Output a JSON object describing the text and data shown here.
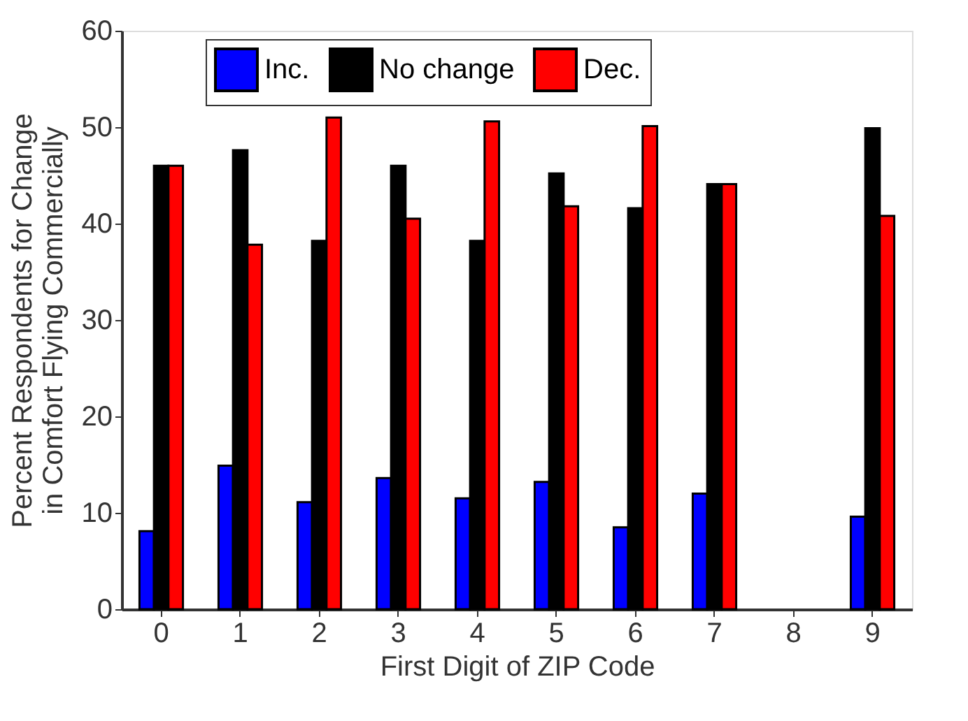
{
  "chart_data": {
    "type": "bar",
    "xlabel": "First Digit of ZIP Code",
    "ylabel": "Percent Respondents for Change\nin Comfort Flying Commercially",
    "categories": [
      "0",
      "1",
      "2",
      "3",
      "4",
      "5",
      "6",
      "7",
      "8",
      "9"
    ],
    "series": [
      {
        "name": "Inc.",
        "color": "#0000ff",
        "values": [
          8.1,
          14.9,
          11.1,
          13.6,
          11.5,
          13.2,
          8.5,
          12.0,
          null,
          9.6
        ]
      },
      {
        "name": "No change",
        "color": "#000000",
        "values": [
          46.0,
          47.6,
          38.2,
          46.0,
          38.2,
          45.2,
          41.6,
          44.1,
          null,
          49.9
        ]
      },
      {
        "name": "Dec.",
        "color": "#ff0000",
        "values": [
          46.0,
          37.8,
          51.0,
          40.5,
          50.6,
          41.8,
          50.1,
          44.1,
          null,
          40.8
        ]
      }
    ],
    "ylim": [
      0,
      60
    ],
    "yticks": [
      0,
      10,
      20,
      30,
      40,
      50,
      60
    ],
    "grid": false,
    "legend": "top"
  }
}
